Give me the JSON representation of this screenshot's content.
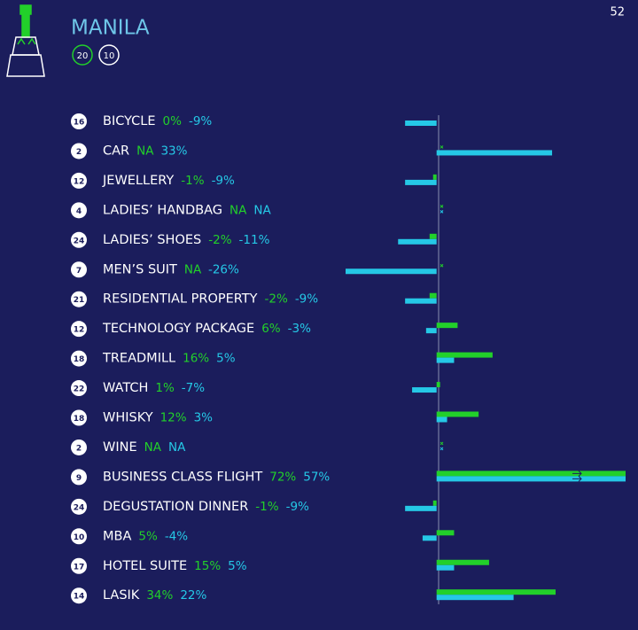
{
  "page_number": "52",
  "chart_data": {
    "type": "bar",
    "title": "MANILA",
    "badges": [
      {
        "label": "20",
        "color": "#22d02a"
      },
      {
        "label": "10",
        "color": "#ffffff"
      }
    ],
    "categories": [
      "BICYCLE",
      "CAR",
      "JEWELLERY",
      "LADIES’ HANDBAG",
      "LADIES’ SHOES",
      "MEN’S SUIT",
      "RESIDENTIAL PROPERTY",
      "TECHNOLOGY PACKAGE",
      "TREADMILL",
      "WATCH",
      "WHISKY",
      "WINE",
      "BUSINESS CLASS FLIGHT",
      "DEGUSTATION DINNER",
      "MBA",
      "HOTEL SUITE",
      "LASIK"
    ],
    "ranks": [
      16,
      2,
      12,
      4,
      24,
      7,
      21,
      12,
      18,
      22,
      18,
      2,
      9,
      24,
      10,
      17,
      14
    ],
    "series": [
      {
        "color": "#22d02a",
        "values": [
          0,
          null,
          -1,
          null,
          -2,
          null,
          -2,
          6,
          16,
          1,
          12,
          null,
          72,
          -1,
          5,
          15,
          34
        ],
        "value_labels": [
          "0%",
          "NA",
          "-1%",
          "NA",
          "-2%",
          "NA",
          "-2%",
          "6%",
          "16%",
          "1%",
          "12%",
          "NA",
          "72%",
          "-1%",
          "5%",
          "15%",
          "34%"
        ]
      },
      {
        "color": "#25c8e6",
        "values": [
          -9,
          33,
          -9,
          null,
          -11,
          -26,
          -9,
          -3,
          5,
          -7,
          3,
          null,
          57,
          -9,
          -4,
          5,
          22
        ],
        "value_labels": [
          "-9%",
          "33%",
          "-9%",
          "NA",
          "-11%",
          "-26%",
          "-9%",
          "-3%",
          "5%",
          "-7%",
          "3%",
          "NA",
          "57%",
          "-9%",
          "-4%",
          "5%",
          "22%"
        ]
      }
    ],
    "xlim": [
      -26,
      54
    ]
  }
}
